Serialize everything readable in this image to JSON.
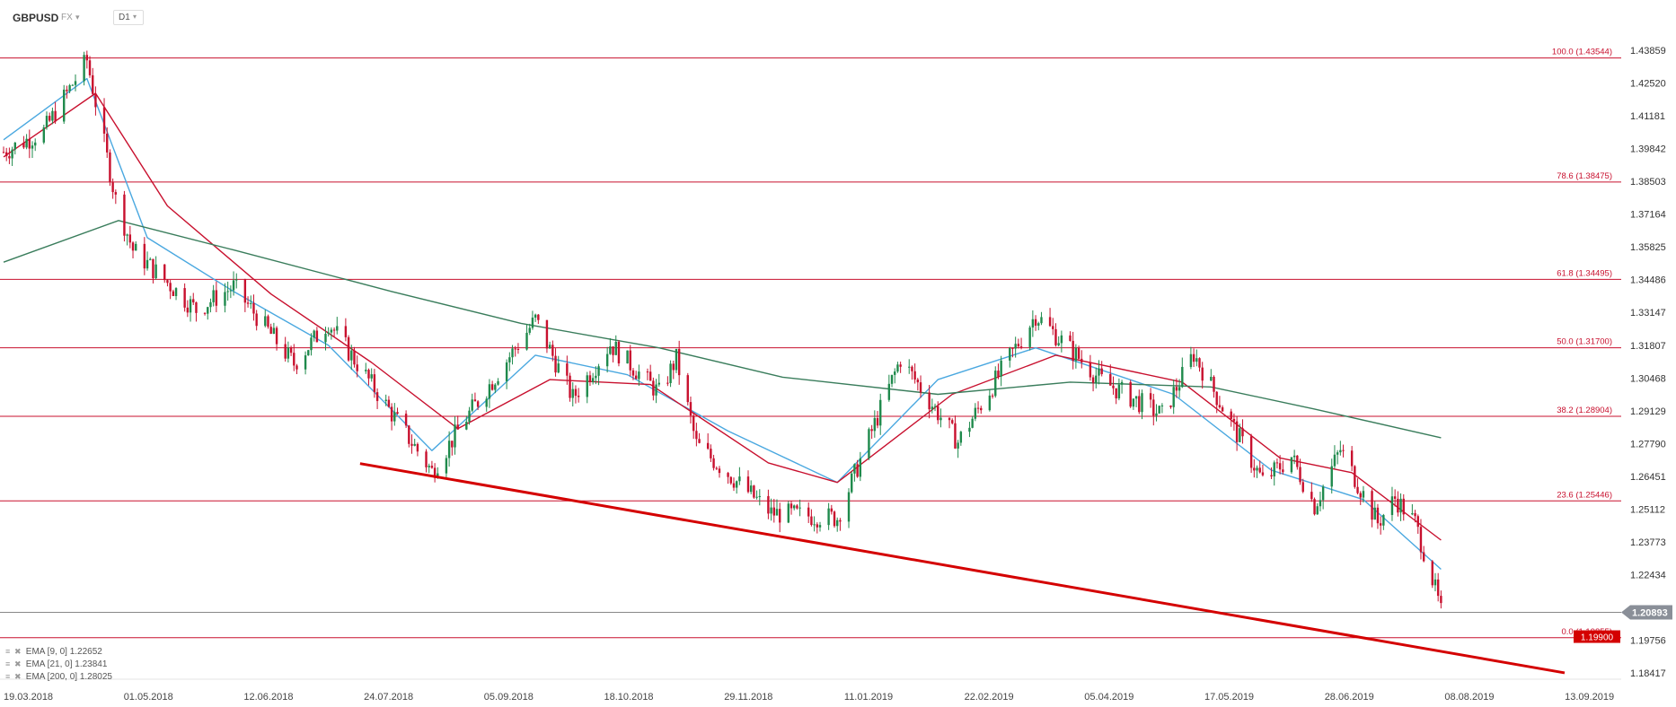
{
  "header": {
    "symbol": "GBPUSD",
    "market": "FX",
    "timeframe": "D1"
  },
  "indicators": [
    {
      "label": "EMA [9, 0]",
      "value": "1.22652",
      "color": "#4aa8e0"
    },
    {
      "label": "EMA [21, 0]",
      "value": "1.23841",
      "color": "#c8102e"
    },
    {
      "label": "EMA [200, 0]",
      "value": "1.28025",
      "color": "#3a7d5c"
    }
  ],
  "chart_data": {
    "type": "candlestick",
    "title": "",
    "ylim": [
      1.17,
      1.445
    ],
    "y_ticks": [
      "1.43859",
      "1.42520",
      "1.41181",
      "1.39842",
      "1.38503",
      "1.37164",
      "1.35825",
      "1.34486",
      "1.33147",
      "1.31807",
      "1.30468",
      "1.29129",
      "1.27790",
      "1.26451",
      "1.25112",
      "1.23773",
      "1.22434",
      "1.19756",
      "1.18417"
    ],
    "x_ticks": [
      "19.03.2018",
      "01.05.2018",
      "12.06.2018",
      "24.07.2018",
      "05.09.2018",
      "18.10.2018",
      "29.11.2018",
      "11.01.2019",
      "22.02.2019",
      "05.04.2019",
      "17.05.2019",
      "28.06.2019",
      "08.08.2019",
      "13.09.2019"
    ],
    "fib_levels": [
      {
        "label": "100.0 (1.43544)",
        "value": 1.43544
      },
      {
        "label": "78.6 (1.38475)",
        "value": 1.38475
      },
      {
        "label": "61.8 (1.34495)",
        "value": 1.34495
      },
      {
        "label": "50.0 (1.31700)",
        "value": 1.317
      },
      {
        "label": "38.2 (1.28904)",
        "value": 1.28904
      },
      {
        "label": "23.6 (1.25446)",
        "value": 1.25446
      },
      {
        "label": "0.0 (1.19855)",
        "value": 1.19855
      }
    ],
    "current_price": {
      "label": "1.20893",
      "value": 1.20893
    },
    "alert_price": {
      "label": "1.19900",
      "value": 1.199
    },
    "trendline": [
      {
        "date": "2018-07-21",
        "price": 1.2697
      },
      {
        "date": "2019-09-13",
        "price": 1.1842
      }
    ],
    "close_series": [
      {
        "date": "2018-03-19",
        "close": 1.397
      },
      {
        "date": "2018-04-02",
        "close": 1.4055
      },
      {
        "date": "2018-04-17",
        "close": 1.4345
      },
      {
        "date": "2018-04-27",
        "close": 1.3775
      },
      {
        "date": "2018-05-03",
        "close": 1.357
      },
      {
        "date": "2018-05-25",
        "close": 1.3325
      },
      {
        "date": "2018-06-07",
        "close": 1.342
      },
      {
        "date": "2018-06-28",
        "close": 1.3105
      },
      {
        "date": "2018-07-10",
        "close": 1.3275
      },
      {
        "date": "2018-07-20",
        "close": 1.3105
      },
      {
        "date": "2018-08-15",
        "close": 1.2665
      },
      {
        "date": "2018-08-27",
        "close": 1.2885
      },
      {
        "date": "2018-09-20",
        "close": 1.3285
      },
      {
        "date": "2018-10-03",
        "close": 1.2965
      },
      {
        "date": "2018-10-16",
        "close": 1.3185
      },
      {
        "date": "2018-11-02",
        "close": 1.2985
      },
      {
        "date": "2018-11-08",
        "close": 1.3125
      },
      {
        "date": "2018-11-15",
        "close": 1.2775
      },
      {
        "date": "2018-12-11",
        "close": 1.2495
      },
      {
        "date": "2019-01-03",
        "close": 1.2475
      },
      {
        "date": "2019-01-25",
        "close": 1.3125
      },
      {
        "date": "2019-02-14",
        "close": 1.2785
      },
      {
        "date": "2019-03-13",
        "close": 1.3305
      },
      {
        "date": "2019-04-05",
        "close": 1.3035
      },
      {
        "date": "2019-04-26",
        "close": 1.2895
      },
      {
        "date": "2019-05-07",
        "close": 1.3145
      },
      {
        "date": "2019-05-31",
        "close": 1.2625
      },
      {
        "date": "2019-06-10",
        "close": 1.2725
      },
      {
        "date": "2019-06-18",
        "close": 1.2525
      },
      {
        "date": "2019-06-27",
        "close": 1.2755
      },
      {
        "date": "2019-07-10",
        "close": 1.2455
      },
      {
        "date": "2019-07-16",
        "close": 1.2555
      },
      {
        "date": "2019-07-23",
        "close": 1.2455
      },
      {
        "date": "2019-07-29",
        "close": 1.2225
      },
      {
        "date": "2019-08-01",
        "close": 1.2089
      }
    ],
    "series": [
      {
        "name": "EMA [9, 0]",
        "points": [
          {
            "date": "2018-03-19",
            "v": 1.402
          },
          {
            "date": "2018-04-17",
            "v": 1.427
          },
          {
            "date": "2018-05-08",
            "v": 1.362
          },
          {
            "date": "2018-06-07",
            "v": 1.34
          },
          {
            "date": "2018-07-10",
            "v": 1.318
          },
          {
            "date": "2018-08-15",
            "v": 1.275
          },
          {
            "date": "2018-09-20",
            "v": 1.314
          },
          {
            "date": "2018-10-22",
            "v": 1.306
          },
          {
            "date": "2018-11-26",
            "v": 1.283
          },
          {
            "date": "2019-01-03",
            "v": 1.262
          },
          {
            "date": "2019-02-07",
            "v": 1.304
          },
          {
            "date": "2019-03-13",
            "v": 1.317
          },
          {
            "date": "2019-04-30",
            "v": 1.298
          },
          {
            "date": "2019-06-03",
            "v": 1.267
          },
          {
            "date": "2019-07-05",
            "v": 1.255
          },
          {
            "date": "2019-08-01",
            "v": 1.22652
          }
        ]
      },
      {
        "name": "EMA [21, 0]",
        "points": [
          {
            "date": "2018-03-19",
            "v": 1.395
          },
          {
            "date": "2018-04-20",
            "v": 1.421
          },
          {
            "date": "2018-05-15",
            "v": 1.375
          },
          {
            "date": "2018-06-20",
            "v": 1.339
          },
          {
            "date": "2018-07-25",
            "v": 1.311
          },
          {
            "date": "2018-08-24",
            "v": 1.284
          },
          {
            "date": "2018-09-25",
            "v": 1.304
          },
          {
            "date": "2018-10-30",
            "v": 1.302
          },
          {
            "date": "2018-12-10",
            "v": 1.27
          },
          {
            "date": "2019-01-03",
            "v": 1.262
          },
          {
            "date": "2019-02-12",
            "v": 1.298
          },
          {
            "date": "2019-03-20",
            "v": 1.314
          },
          {
            "date": "2019-05-03",
            "v": 1.303
          },
          {
            "date": "2019-06-06",
            "v": 1.272
          },
          {
            "date": "2019-07-01",
            "v": 1.266
          },
          {
            "date": "2019-08-01",
            "v": 1.23841
          }
        ]
      },
      {
        "name": "EMA [200, 0]",
        "points": [
          {
            "date": "2018-03-19",
            "v": 1.352
          },
          {
            "date": "2018-04-28",
            "v": 1.369
          },
          {
            "date": "2018-06-07",
            "v": 1.357
          },
          {
            "date": "2018-08-01",
            "v": 1.34
          },
          {
            "date": "2018-09-15",
            "v": 1.327
          },
          {
            "date": "2018-11-02",
            "v": 1.317
          },
          {
            "date": "2018-12-15",
            "v": 1.305
          },
          {
            "date": "2019-02-07",
            "v": 1.298
          },
          {
            "date": "2019-03-25",
            "v": 1.303
          },
          {
            "date": "2019-05-13",
            "v": 1.301
          },
          {
            "date": "2019-06-18",
            "v": 1.292
          },
          {
            "date": "2019-08-01",
            "v": 1.28025
          }
        ]
      }
    ]
  }
}
